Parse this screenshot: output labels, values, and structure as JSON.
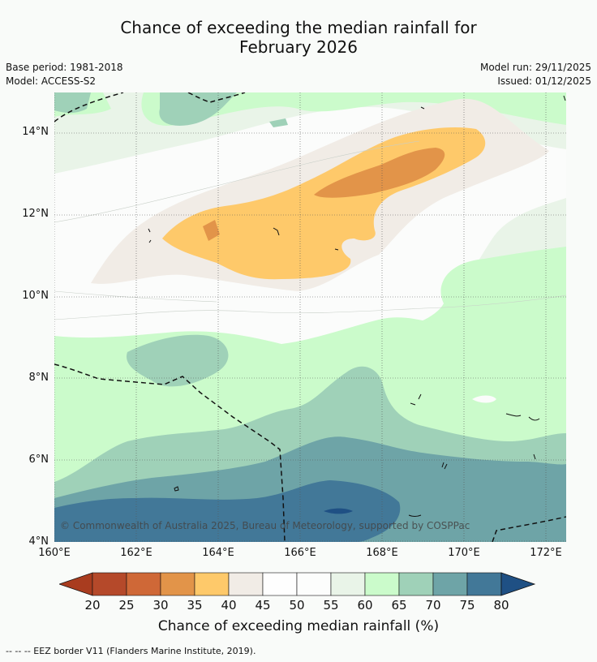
{
  "header": {
    "title_line1": "Chance of exceeding the median rainfall for",
    "title_line2": "February 2026",
    "base_period": "Base period: 1981-2018",
    "model": "Model: ACCESS-S2",
    "model_run": "Model run: 29/11/2025",
    "issued": "Issued: 01/12/2025"
  },
  "axes": {
    "lat_labels": [
      "14°N",
      "12°N",
      "10°N",
      "8°N",
      "6°N",
      "4°N"
    ],
    "lon_labels": [
      "160°E",
      "162°E",
      "164°E",
      "166°E",
      "168°E",
      "170°E",
      "172°E"
    ]
  },
  "map": {
    "copyright": "© Commonwealth of Australia 2025, Bureau of Meteorology, supported by COSPPac"
  },
  "colorbar": {
    "ticks": [
      "20",
      "25",
      "30",
      "35",
      "40",
      "45",
      "50",
      "55",
      "60",
      "65",
      "70",
      "75",
      "80"
    ],
    "colors": [
      "#a93c1f",
      "#b5492a",
      "#cf6837",
      "#e29449",
      "#fec96a",
      "#f1ece6",
      "#fefefe",
      "#fcfdfc",
      "#e9f4e8",
      "#cbfbcb",
      "#9fd1b8",
      "#6ea4a7",
      "#427898",
      "#1f5084"
    ],
    "label": "Chance of exceeding median rainfall (%)"
  },
  "footer": {
    "legend": "--  --  -- EEZ border V11 (Flanders Marine Institute, 2019)."
  }
}
